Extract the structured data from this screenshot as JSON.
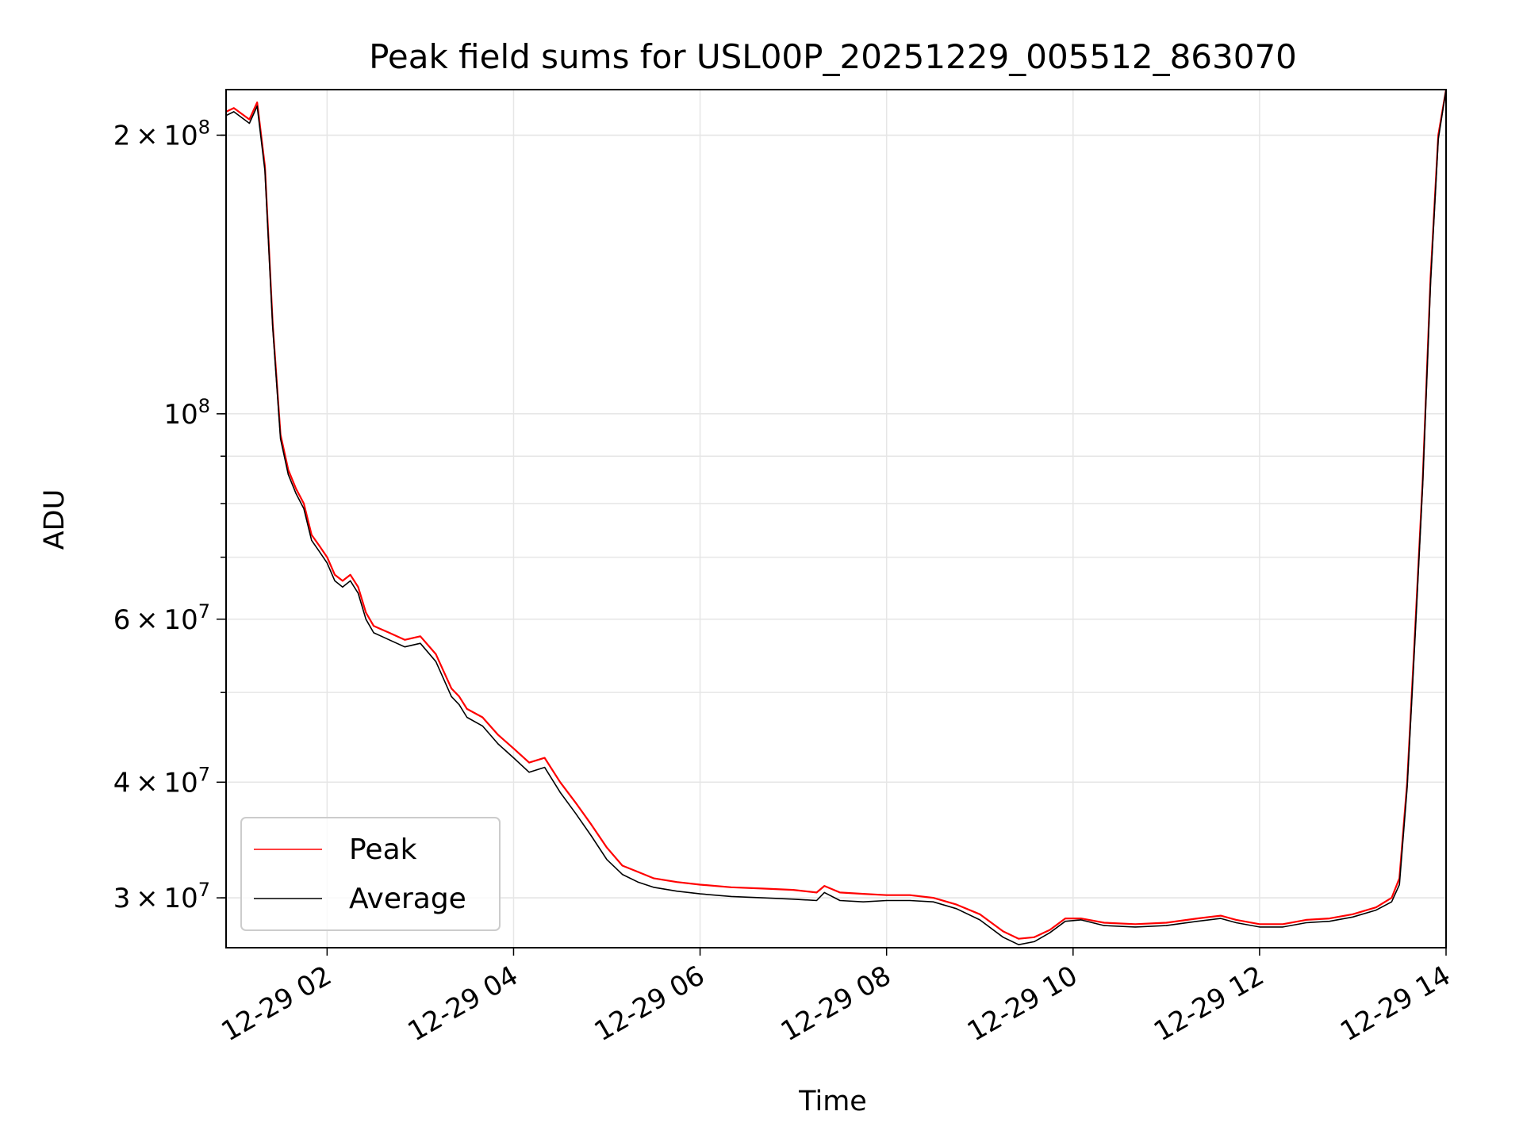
{
  "chart_data": {
    "type": "line",
    "title": "Peak field sums for USL00P_20251229_005512_863070",
    "xlabel": "Time",
    "ylabel": "ADU",
    "x_ticks": [
      "12-29 02",
      "12-29 04",
      "12-29 06",
      "12-29 08",
      "12-29 10",
      "12-29 12",
      "12-29 14"
    ],
    "y_ticks": [
      {
        "value": 30000000,
        "mant": "3",
        "exp": "7"
      },
      {
        "value": 40000000,
        "mant": "4",
        "exp": "7"
      },
      {
        "value": 60000000,
        "mant": "6",
        "exp": "7"
      },
      {
        "value": 100000000,
        "mant": "",
        "exp": "8"
      },
      {
        "value": 200000000,
        "mant": "2",
        "exp": "8"
      }
    ],
    "y_scale": "log",
    "ylim": [
      26500000,
      224000000
    ],
    "xlim": [
      "12-29 00:55",
      "12-29 14:00"
    ],
    "grid": true,
    "legend_position": "lower-left",
    "colors": {
      "Peak": "#ff0000",
      "Average": "#000000"
    },
    "series": [
      {
        "name": "Peak",
        "x": [
          "12-29 00:55",
          "12-29 01:00",
          "12-29 01:10",
          "12-29 01:15",
          "12-29 01:20",
          "12-29 01:25",
          "12-29 01:30",
          "12-29 01:35",
          "12-29 01:40",
          "12-29 01:45",
          "12-29 01:50",
          "12-29 01:55",
          "12-29 02:00",
          "12-29 02:05",
          "12-29 02:10",
          "12-29 02:15",
          "12-29 02:20",
          "12-29 02:25",
          "12-29 02:30",
          "12-29 02:35",
          "12-29 02:40",
          "12-29 02:50",
          "12-29 03:00",
          "12-29 03:10",
          "12-29 03:20",
          "12-29 03:25",
          "12-29 03:30",
          "12-29 03:40",
          "12-29 03:50",
          "12-29 04:00",
          "12-29 04:10",
          "12-29 04:20",
          "12-29 04:30",
          "12-29 04:40",
          "12-29 04:50",
          "12-29 05:00",
          "12-29 05:10",
          "12-29 05:20",
          "12-29 05:30",
          "12-29 05:45",
          "12-29 06:00",
          "12-29 06:20",
          "12-29 06:40",
          "12-29 07:00",
          "12-29 07:15",
          "12-29 07:20",
          "12-29 07:30",
          "12-29 07:45",
          "12-29 08:00",
          "12-29 08:15",
          "12-29 08:30",
          "12-29 08:45",
          "12-29 09:00",
          "12-29 09:15",
          "12-29 09:25",
          "12-29 09:35",
          "12-29 09:45",
          "12-29 09:55",
          "12-29 10:05",
          "12-29 10:20",
          "12-29 10:40",
          "12-29 11:00",
          "12-29 11:20",
          "12-29 11:35",
          "12-29 11:45",
          "12-29 12:00",
          "12-29 12:15",
          "12-29 12:30",
          "12-29 12:45",
          "12-29 13:00",
          "12-29 13:15",
          "12-29 13:25",
          "12-29 13:30",
          "12-29 13:35",
          "12-29 13:40",
          "12-29 13:45",
          "12-29 13:50",
          "12-29 13:55",
          "12-29 14:00"
        ],
        "y": [
          212000000,
          214000000,
          208000000,
          217000000,
          185000000,
          125000000,
          95000000,
          87000000,
          83000000,
          80000000,
          74000000,
          72000000,
          70000000,
          67000000,
          66000000,
          67000000,
          65000000,
          61000000,
          59000000,
          58500000,
          58000000,
          57000000,
          57500000,
          55000000,
          50500000,
          49500000,
          48000000,
          47000000,
          45000000,
          43500000,
          42000000,
          42500000,
          40000000,
          38000000,
          36000000,
          34000000,
          32500000,
          32000000,
          31500000,
          31200000,
          31000000,
          30800000,
          30700000,
          30600000,
          30400000,
          30900000,
          30400000,
          30300000,
          30200000,
          30200000,
          30000000,
          29500000,
          28800000,
          27600000,
          27100000,
          27200000,
          27700000,
          28500000,
          28500000,
          28200000,
          28100000,
          28200000,
          28500000,
          28700000,
          28400000,
          28100000,
          28100000,
          28400000,
          28500000,
          28800000,
          29300000,
          30000000,
          31500000,
          40000000,
          58000000,
          85000000,
          140000000,
          200000000,
          224000000
        ]
      },
      {
        "name": "Average",
        "x": [
          "12-29 00:55",
          "12-29 01:00",
          "12-29 01:10",
          "12-29 01:15",
          "12-29 01:20",
          "12-29 01:25",
          "12-29 01:30",
          "12-29 01:35",
          "12-29 01:40",
          "12-29 01:45",
          "12-29 01:50",
          "12-29 01:55",
          "12-29 02:00",
          "12-29 02:05",
          "12-29 02:10",
          "12-29 02:15",
          "12-29 02:20",
          "12-29 02:25",
          "12-29 02:30",
          "12-29 02:35",
          "12-29 02:40",
          "12-29 02:50",
          "12-29 03:00",
          "12-29 03:10",
          "12-29 03:20",
          "12-29 03:25",
          "12-29 03:30",
          "12-29 03:40",
          "12-29 03:50",
          "12-29 04:00",
          "12-29 04:10",
          "12-29 04:20",
          "12-29 04:30",
          "12-29 04:40",
          "12-29 04:50",
          "12-29 05:00",
          "12-29 05:10",
          "12-29 05:20",
          "12-29 05:30",
          "12-29 05:45",
          "12-29 06:00",
          "12-29 06:20",
          "12-29 06:40",
          "12-29 07:00",
          "12-29 07:15",
          "12-29 07:20",
          "12-29 07:30",
          "12-29 07:45",
          "12-29 08:00",
          "12-29 08:15",
          "12-29 08:30",
          "12-29 08:45",
          "12-29 09:00",
          "12-29 09:15",
          "12-29 09:25",
          "12-29 09:35",
          "12-29 09:45",
          "12-29 09:55",
          "12-29 10:05",
          "12-29 10:20",
          "12-29 10:40",
          "12-29 11:00",
          "12-29 11:20",
          "12-29 11:35",
          "12-29 11:45",
          "12-29 12:00",
          "12-29 12:15",
          "12-29 12:30",
          "12-29 12:45",
          "12-29 13:00",
          "12-29 13:15",
          "12-29 13:25",
          "12-29 13:30",
          "12-29 13:35",
          "12-29 13:40",
          "12-29 13:45",
          "12-29 13:50",
          "12-29 13:55",
          "12-29 14:00"
        ],
        "y": [
          210000000,
          212000000,
          206000000,
          215000000,
          183000000,
          124000000,
          94000000,
          86000000,
          82000000,
          79000000,
          73000000,
          71000000,
          69000000,
          66000000,
          65000000,
          66000000,
          64000000,
          60000000,
          58000000,
          57500000,
          57000000,
          56000000,
          56500000,
          54000000,
          49500000,
          48500000,
          47000000,
          46000000,
          44000000,
          42500000,
          41000000,
          41500000,
          39000000,
          37000000,
          35000000,
          33000000,
          31800000,
          31200000,
          30800000,
          30500000,
          30300000,
          30100000,
          30000000,
          29900000,
          29800000,
          30400000,
          29800000,
          29700000,
          29800000,
          29800000,
          29700000,
          29200000,
          28400000,
          27200000,
          26700000,
          26900000,
          27500000,
          28300000,
          28400000,
          28000000,
          27900000,
          28000000,
          28300000,
          28500000,
          28200000,
          27900000,
          27900000,
          28200000,
          28300000,
          28600000,
          29100000,
          29700000,
          31000000,
          39500000,
          57000000,
          84000000,
          138000000,
          198000000,
          224000000
        ]
      }
    ]
  }
}
